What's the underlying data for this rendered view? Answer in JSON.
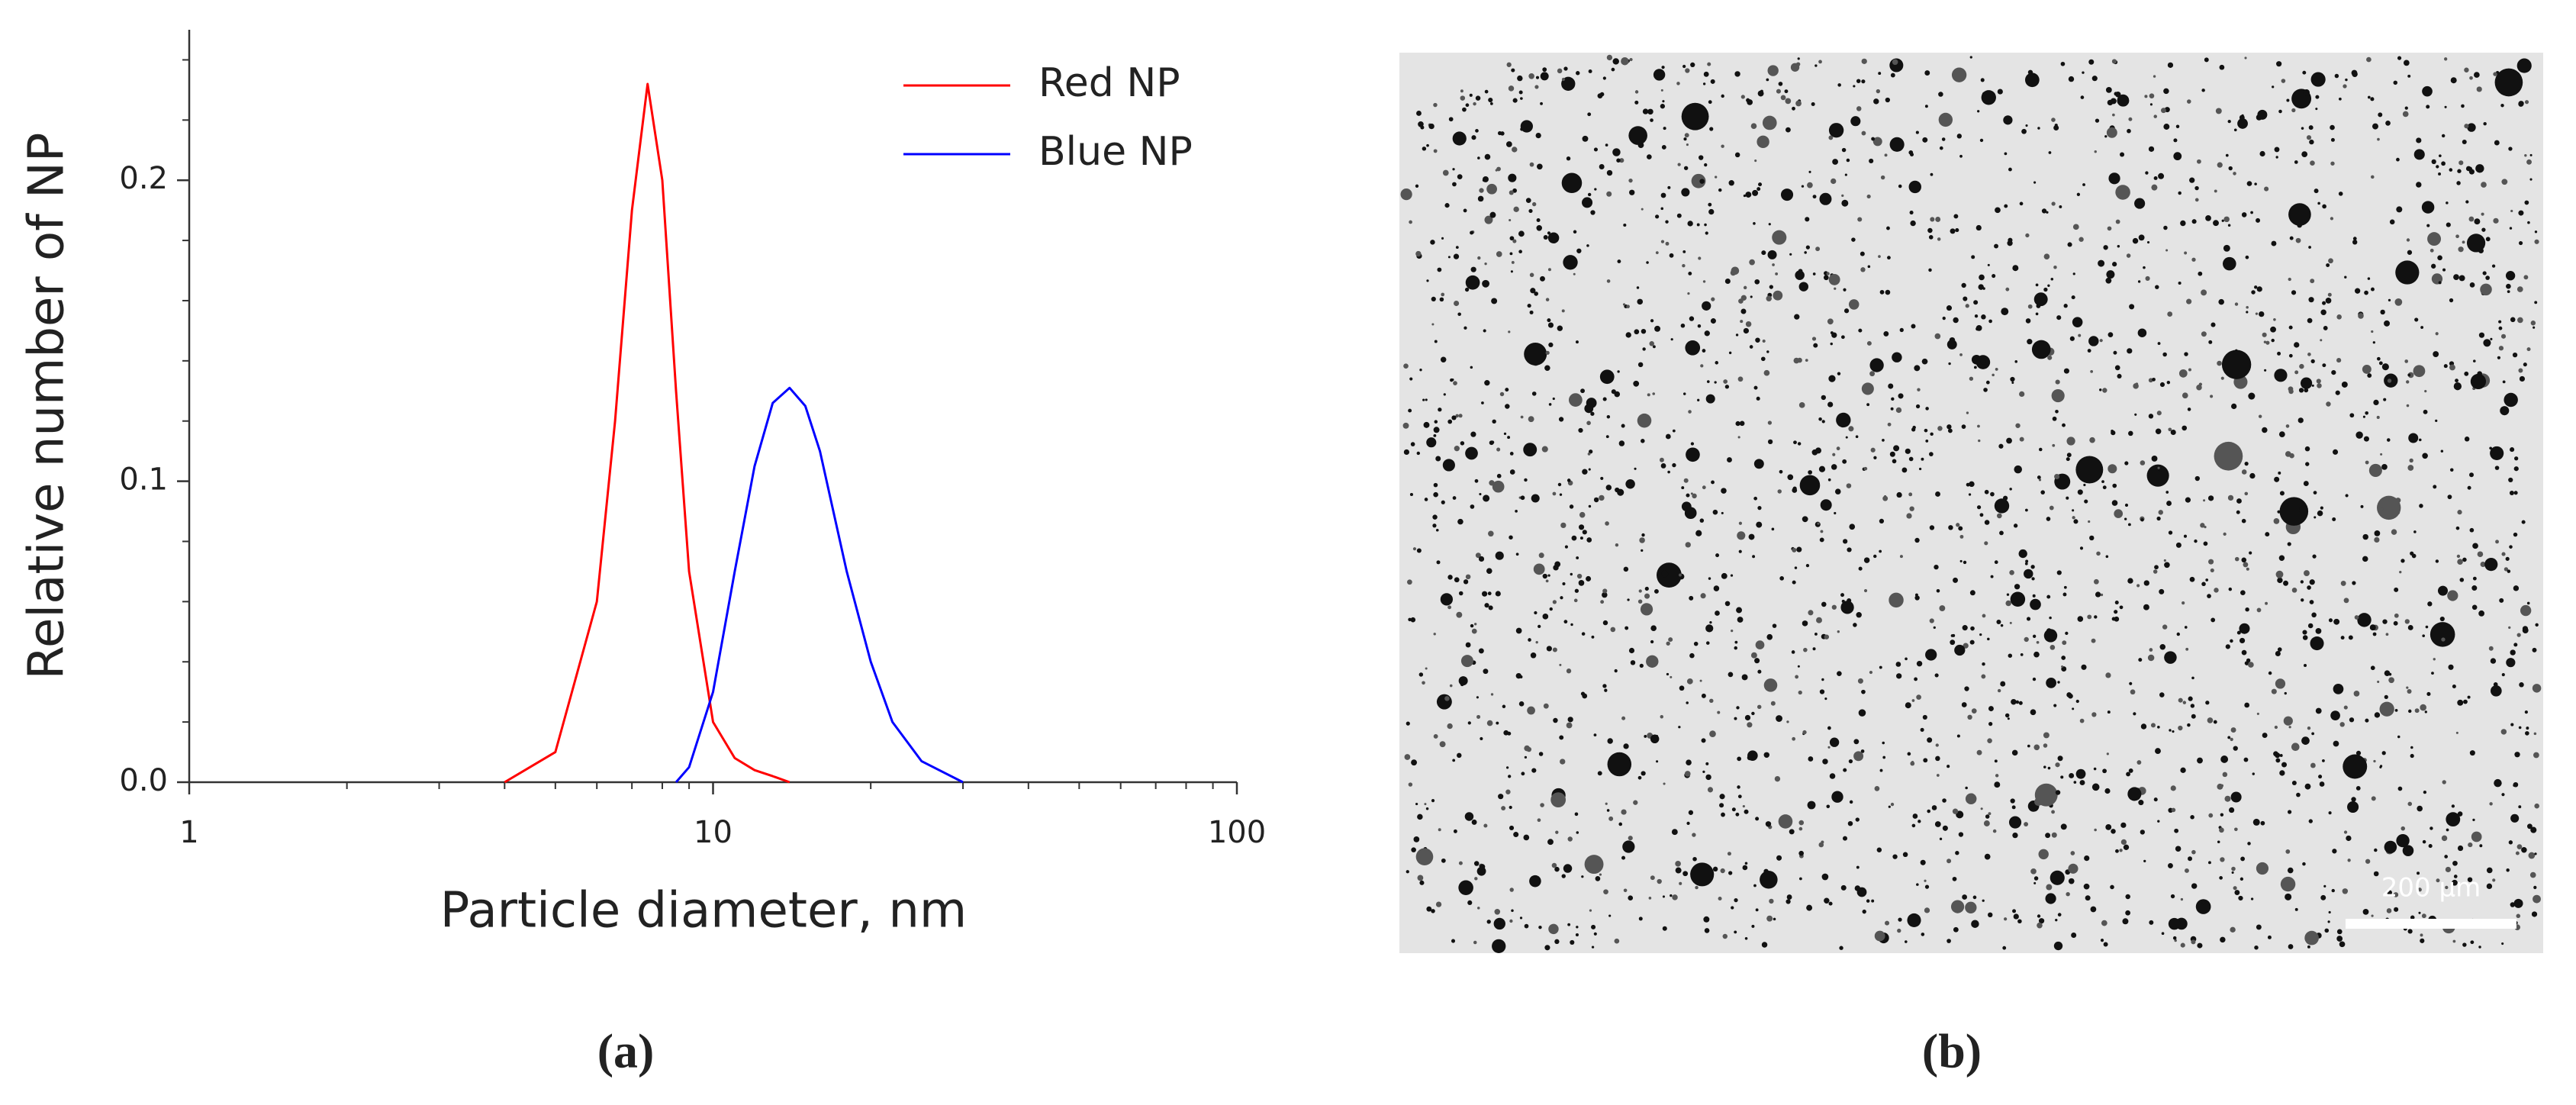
{
  "chart_data": {
    "type": "line",
    "x_label": "Particle diameter, nm",
    "y_label": "Relative number of NP",
    "xscale": "log",
    "xlim": [
      1,
      100
    ],
    "xticks": [
      1,
      10,
      100
    ],
    "xminorticks": [
      2,
      3,
      4,
      5,
      6,
      7,
      8,
      9,
      20,
      30,
      40,
      50,
      60,
      70,
      80,
      90
    ],
    "ylim": [
      0,
      0.25
    ],
    "yticks": [
      {
        "value": 0,
        "label": "0.0"
      },
      0.1,
      0.2
    ],
    "yminorticks": [
      0.02,
      0.04,
      0.06,
      0.08,
      0.12,
      0.14,
      0.16,
      0.18,
      0.22,
      0.24
    ],
    "legend": "upper right",
    "x": [
      4,
      5,
      6,
      6.5,
      7,
      7.5,
      8,
      8.5,
      9,
      10,
      11,
      12,
      13,
      14,
      15,
      16,
      18,
      20,
      22,
      25,
      30
    ],
    "series": [
      {
        "name": "Red NP",
        "color": "#ff0000",
        "values": [
          0,
          0.01,
          0.06,
          0.12,
          0.19,
          0.232,
          0.2,
          0.13,
          0.07,
          0.02,
          0.008,
          0.004,
          0.002,
          0,
          null,
          null,
          null,
          null,
          null,
          null,
          null
        ]
      },
      {
        "name": "Blue NP",
        "color": "#0000ff",
        "values": [
          null,
          null,
          null,
          null,
          null,
          null,
          null,
          0,
          0.005,
          0.03,
          0.07,
          0.105,
          0.126,
          0.131,
          0.125,
          0.11,
          0.07,
          0.04,
          0.02,
          0.007,
          0
        ]
      }
    ]
  },
  "panel_labels": [
    "(a)",
    "(b)"
  ],
  "micrograph": {
    "scale_bar_label": "200 µm"
  }
}
